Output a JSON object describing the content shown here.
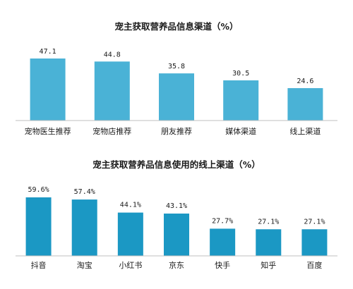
{
  "colors": {
    "chart1_bar": "#4ab2d6",
    "chart2_bar": "#1b98c4",
    "text": "#1a1a1a",
    "axis": "#bfbfbf"
  },
  "chart_data": [
    {
      "type": "bar",
      "title": "宠主获取营养品信息渠道（%）",
      "categories": [
        "宠物医生推荐",
        "宠物店推荐",
        "朋友推荐",
        "媒体渠道",
        "线上渠道"
      ],
      "values": [
        47.1,
        44.8,
        35.8,
        30.5,
        24.6
      ],
      "value_labels": [
        "47.1",
        "44.8",
        "35.8",
        "30.5",
        "24.6"
      ],
      "xlabel": "",
      "ylabel": "",
      "ylim": [
        0,
        47.1
      ],
      "grid": false
    },
    {
      "type": "bar",
      "title": "宠主获取营养品信息使用的线上渠道（%）",
      "categories": [
        "抖音",
        "淘宝",
        "小红书",
        "京东",
        "快手",
        "知乎",
        "百度"
      ],
      "values": [
        59.6,
        57.4,
        44.1,
        43.1,
        27.7,
        27.1,
        27.1
      ],
      "value_labels": [
        "59.6%",
        "57.4%",
        "44.1%",
        "43.1%",
        "27.7%",
        "27.1%",
        "27.1%"
      ],
      "xlabel": "",
      "ylabel": "",
      "ylim": [
        0,
        59.6
      ],
      "grid": false
    }
  ]
}
